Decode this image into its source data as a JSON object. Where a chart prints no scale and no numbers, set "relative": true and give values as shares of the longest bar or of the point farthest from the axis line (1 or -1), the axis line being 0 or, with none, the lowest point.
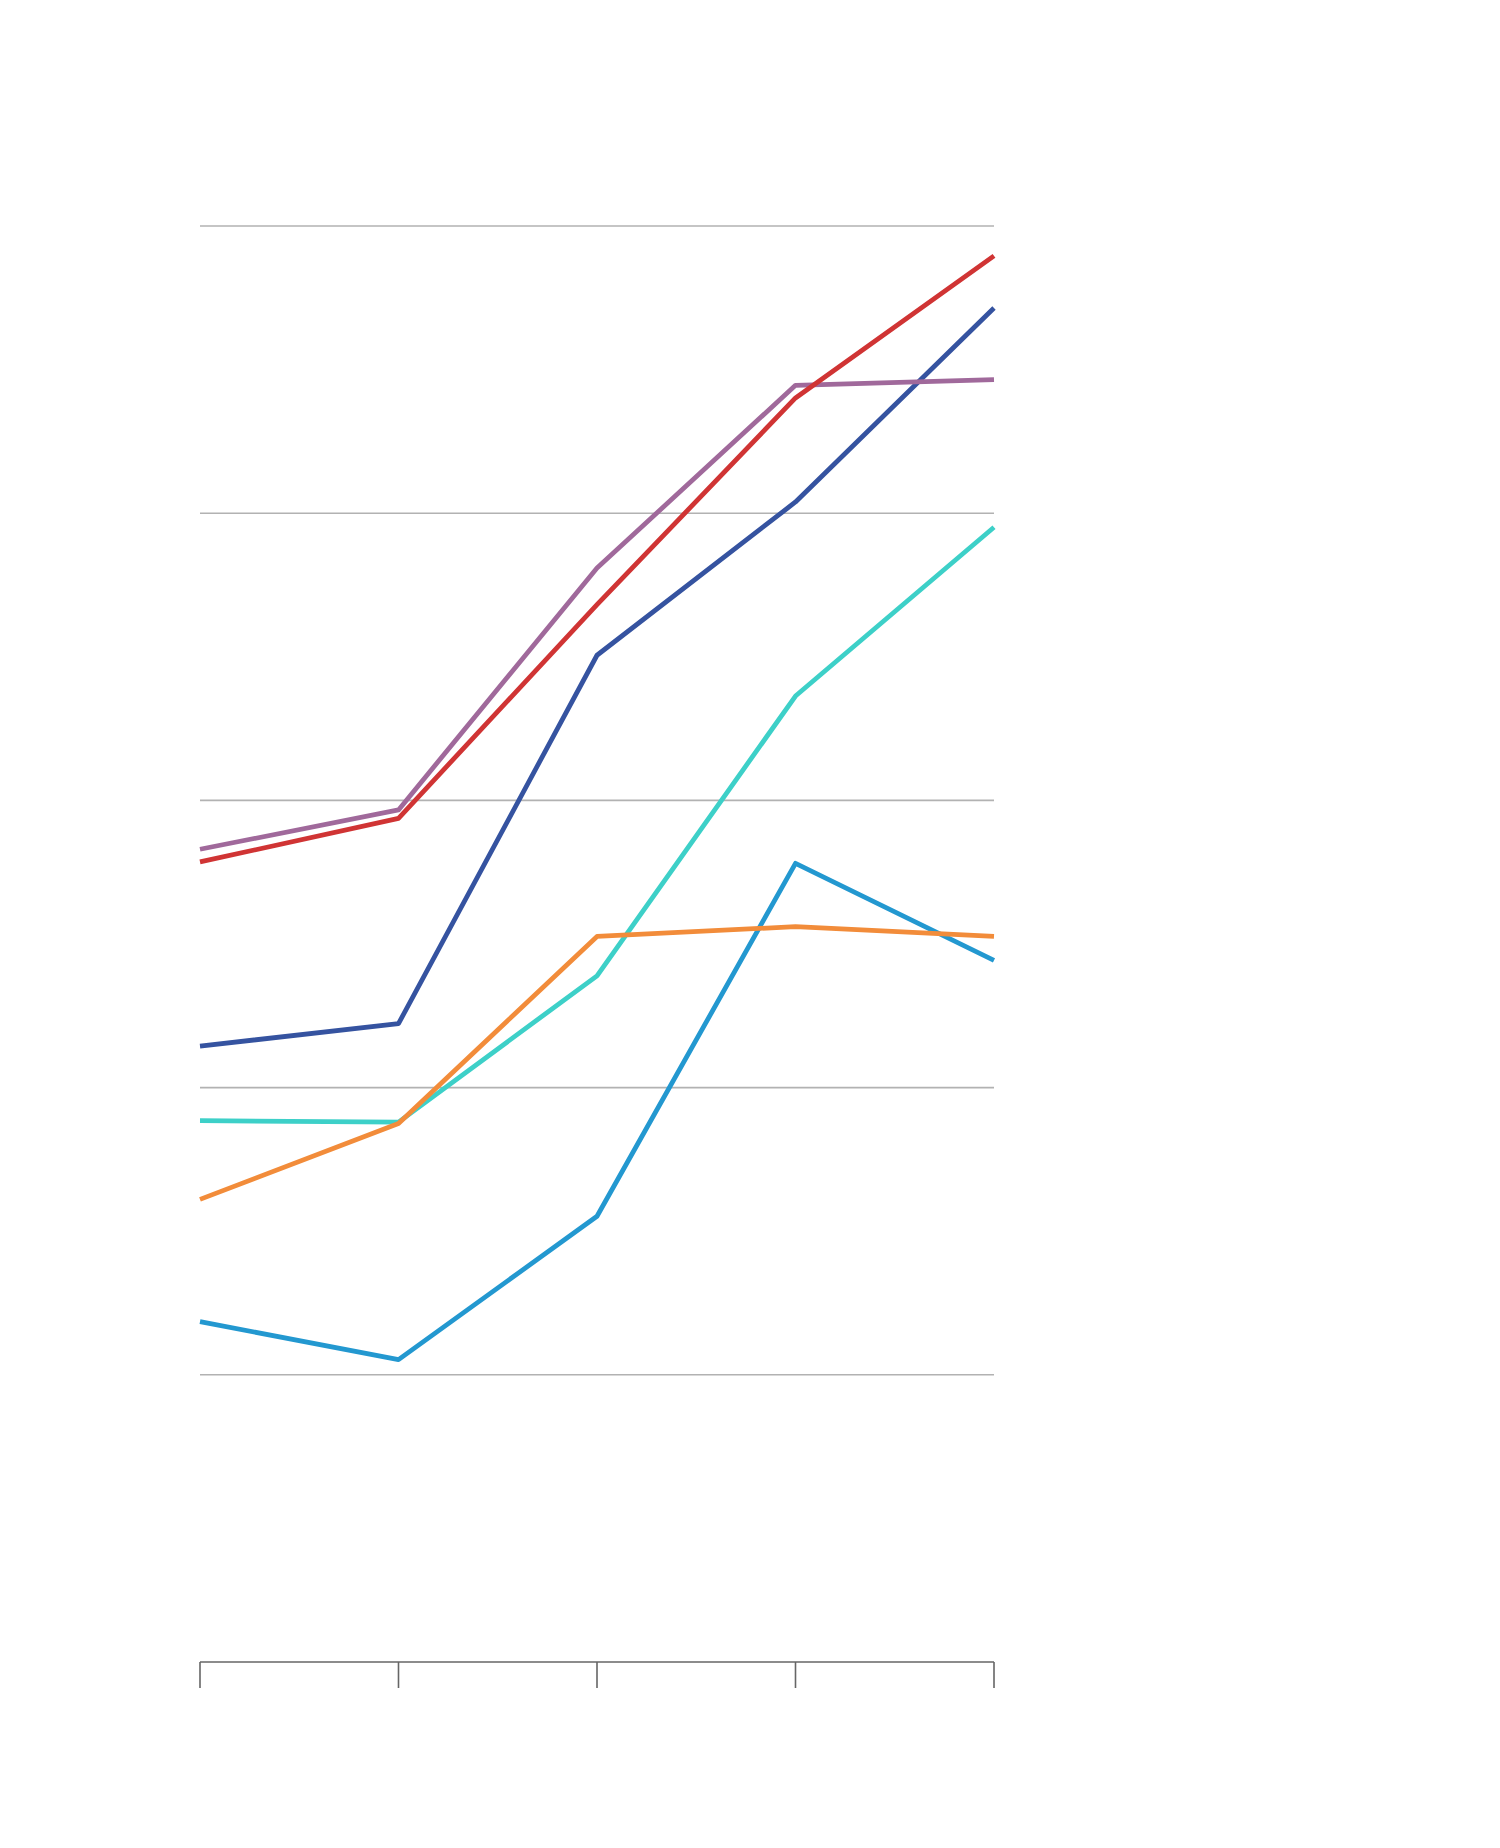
{
  "chart_data": {
    "type": "line",
    "relative": true,
    "grid": "y",
    "categories": [
      null,
      null,
      null,
      null,
      null
    ],
    "series": [
      {
        "color": "#2398d0",
        "values": [
          0.242,
          0.215,
          0.317,
          0.568,
          0.499
        ]
      },
      {
        "color": "#3dd0c8",
        "values": [
          0.385,
          0.384,
          0.488,
          0.687,
          0.807
        ]
      },
      {
        "color": "#f28c3a",
        "values": [
          0.329,
          0.383,
          0.516,
          0.523,
          0.516
        ]
      },
      {
        "color": "#3553a0",
        "values": [
          0.438,
          0.454,
          0.716,
          0.825,
          0.963
        ]
      },
      {
        "color": "#a0699b",
        "values": [
          0.578,
          0.606,
          0.778,
          0.908,
          0.912
        ]
      },
      {
        "color": "#d03434",
        "values": [
          0.569,
          0.6,
          0.752,
          0.899,
          1.0
        ]
      }
    ]
  }
}
